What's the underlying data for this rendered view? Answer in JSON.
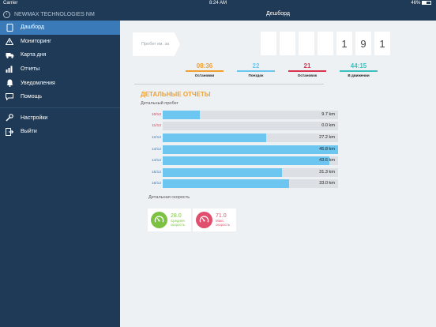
{
  "status_bar": {
    "carrier": "Carrier",
    "time": "8:24 AM",
    "battery": "46%"
  },
  "sidebar": {
    "company": "NEWMAX TECHNOLOGIES NM",
    "items": [
      {
        "label": "Дашборд",
        "icon": "tablet-icon"
      },
      {
        "label": "Мониторинг",
        "icon": "warning-icon"
      },
      {
        "label": "Карта дня",
        "icon": "truck-icon"
      },
      {
        "label": "Отчеты",
        "icon": "bar-chart-icon"
      },
      {
        "label": "Уведомления",
        "icon": "bell-icon"
      },
      {
        "label": "Помощь",
        "icon": "chat-icon"
      }
    ],
    "settings": "Настройки",
    "logout": "Выйти"
  },
  "header": {
    "title": "Дешборд"
  },
  "odometer": {
    "label": "Пробег км. за неделю",
    "digits": [
      "",
      "",
      "",
      "",
      "1",
      "9",
      "1"
    ]
  },
  "stats": [
    {
      "value": "08:36",
      "label": "Остановки",
      "color": "#f0a030"
    },
    {
      "value": "22",
      "label": "Поездок",
      "color": "#6cc6f0"
    },
    {
      "value": "21",
      "label": "Остановок",
      "color": "#d9344f"
    },
    {
      "value": "44:15",
      "label": "В движении",
      "color": "#3bbfbf"
    }
  ],
  "reports": {
    "title": "ДЕТАЛЬНЫЕ ОТЧЕТЫ",
    "mileage_title": "Детальный пробег",
    "rows": [
      {
        "date": "10/12",
        "km": "9.7 km",
        "fraction": 0.21,
        "date_color": "#d9344f"
      },
      {
        "date": "11/12",
        "km": "0.0 km",
        "fraction": 0.0,
        "date_color": "#d9344f"
      },
      {
        "date": "12/12",
        "km": "27.2 km",
        "fraction": 0.59,
        "date_color": "#3a7ab8"
      },
      {
        "date": "13/12",
        "km": "45.8 km",
        "fraction": 1.0,
        "date_color": "#3a7ab8"
      },
      {
        "date": "14/12",
        "km": "43.6 km",
        "fraction": 0.95,
        "date_color": "#3a7ab8"
      },
      {
        "date": "15/12",
        "km": "31.3 km",
        "fraction": 0.68,
        "date_color": "#3a7ab8"
      },
      {
        "date": "16/12",
        "km": "33.0 km",
        "fraction": 0.72,
        "date_color": "#3a7ab8"
      }
    ],
    "speed_title": "Детальная скорость",
    "speeds": [
      {
        "value": "28.0",
        "label1": "Средняя",
        "label2": "скорость",
        "color": "#7cc242"
      },
      {
        "value": "71.0",
        "label1": "Макс.",
        "label2": "скорость",
        "color": "#e0506e"
      }
    ]
  }
}
